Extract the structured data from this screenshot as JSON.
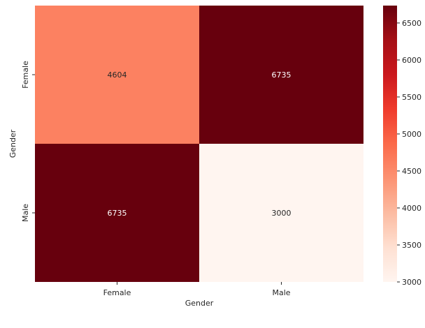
{
  "chart_data": {
    "type": "heatmap",
    "x_categories": [
      "Female",
      "Male"
    ],
    "y_categories": [
      "Female",
      "Male"
    ],
    "values": [
      [
        4604,
        6735
      ],
      [
        6735,
        3000
      ]
    ],
    "xlabel": "Gender",
    "ylabel": "Gender",
    "colormap": "Reds",
    "colorbar": {
      "min": 3000,
      "max": 6735,
      "ticks": [
        3000,
        3500,
        4000,
        4500,
        5000,
        5500,
        6000,
        6500
      ]
    },
    "annotations": true,
    "colors": {
      "low": "#fff5f0",
      "high": "#67000d",
      "annotation_dark_bg": "#ffffff",
      "annotation_light_bg": "#262626"
    }
  }
}
